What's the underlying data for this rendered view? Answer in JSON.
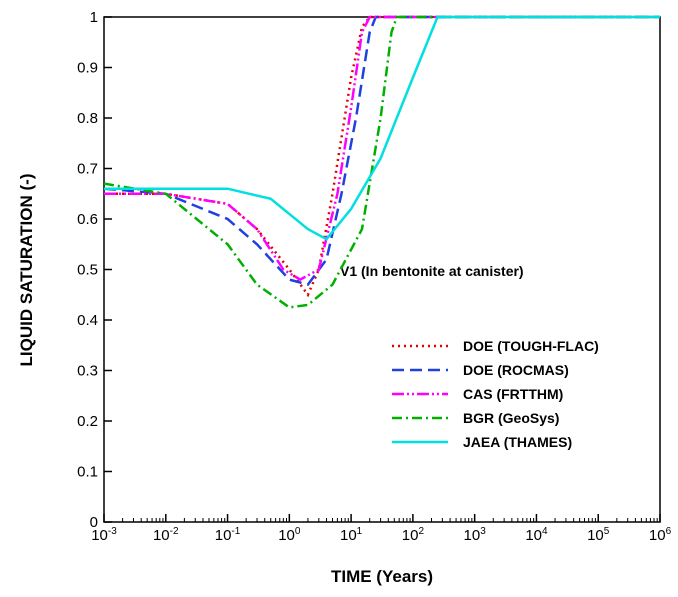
{
  "chart_data": {
    "type": "line",
    "xlabel": "TIME (Years)",
    "ylabel": "LIQUID SATURATION (-)",
    "annotation": "V1 (In bentonite at canister)",
    "xscale": "log",
    "xlim": [
      0.001,
      1000000
    ],
    "xticks": [
      {
        "value": 0.001,
        "label": "10-3"
      },
      {
        "value": 0.01,
        "label": "10-2"
      },
      {
        "value": 0.1,
        "label": "10-1"
      },
      {
        "value": 1,
        "label": "100"
      },
      {
        "value": 10,
        "label": "101"
      },
      {
        "value": 100,
        "label": "102"
      },
      {
        "value": 1000,
        "label": "103"
      },
      {
        "value": 10000,
        "label": "104"
      },
      {
        "value": 100000,
        "label": "105"
      },
      {
        "value": 1000000,
        "label": "106"
      }
    ],
    "ylim": [
      0,
      1
    ],
    "yticks": [
      0,
      0.1,
      0.2,
      0.3,
      0.4,
      0.5,
      0.6,
      0.7,
      0.8,
      0.9,
      1
    ],
    "series": [
      {
        "name": "DOE (TOUGH-FLAC)",
        "color": "#e00000",
        "dash": "2,4",
        "x": [
          0.001,
          0.01,
          0.1,
          0.3,
          1,
          2,
          3,
          5,
          10,
          15,
          20,
          1000000
        ],
        "values": [
          0.65,
          0.65,
          0.63,
          0.58,
          0.5,
          0.45,
          0.5,
          0.65,
          0.88,
          0.98,
          1,
          1
        ]
      },
      {
        "name": "DOE (ROCMAS)",
        "color": "#2040e0",
        "dash": "12,6",
        "x": [
          0.001,
          0.01,
          0.1,
          0.3,
          1,
          2,
          4,
          7,
          12,
          20,
          25,
          1000000
        ],
        "values": [
          0.66,
          0.65,
          0.6,
          0.55,
          0.48,
          0.47,
          0.52,
          0.65,
          0.8,
          0.97,
          1,
          1
        ]
      },
      {
        "name": "CAS (FRTTHM)",
        "color": "#ff00ff",
        "dash": "12,3,2,3,2,3",
        "x": [
          0.001,
          0.01,
          0.1,
          0.3,
          0.8,
          1.5,
          3,
          6,
          10,
          15,
          20,
          1000000
        ],
        "values": [
          0.65,
          0.65,
          0.63,
          0.58,
          0.5,
          0.48,
          0.5,
          0.65,
          0.82,
          0.97,
          1,
          1
        ]
      },
      {
        "name": "BGR (GeoSys)",
        "color": "#00b000",
        "dash": "10,4,2,4",
        "x": [
          0.001,
          0.01,
          0.1,
          0.3,
          1,
          2,
          5,
          15,
          30,
          45,
          55,
          1000000
        ],
        "values": [
          0.67,
          0.65,
          0.55,
          0.47,
          0.425,
          0.43,
          0.47,
          0.58,
          0.8,
          0.97,
          1,
          1
        ]
      },
      {
        "name": "JAEA (THAMES)",
        "color": "#00e0e0",
        "dash": "",
        "x": [
          0.001,
          0.1,
          0.5,
          2,
          4,
          10,
          30,
          100,
          250,
          1000000
        ],
        "values": [
          0.66,
          0.66,
          0.64,
          0.58,
          0.56,
          0.62,
          0.72,
          0.88,
          1,
          1
        ]
      }
    ]
  }
}
